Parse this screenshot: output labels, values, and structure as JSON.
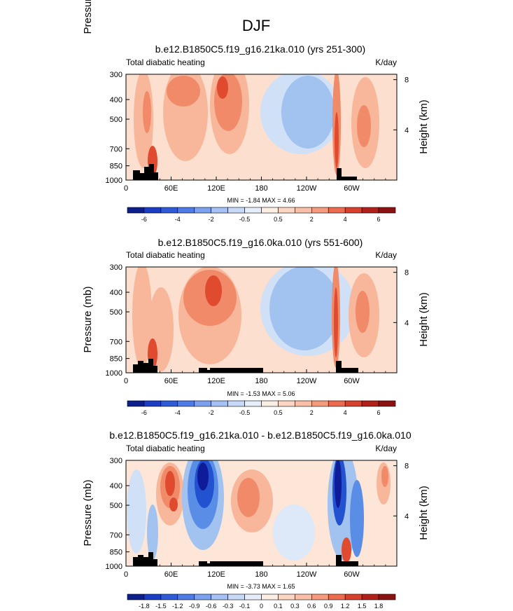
{
  "figure": {
    "title": "DJF"
  },
  "panels": [
    {
      "title": "b.e12.B1850C5.f19_g16.21ka.010 (yrs 251-300)",
      "left_label": "Total diabatic heating",
      "right_label": "K/day",
      "stats": "MIN = -1.84  MAX =  4.66",
      "colorbar_labels": [
        "-6",
        "-4",
        "-2",
        "-0.5",
        "0.5",
        "2",
        "4",
        "6"
      ]
    },
    {
      "title": "b.e12.B1850C5.f19_g16.0ka.010 (yrs 551-600)",
      "left_label": "Total diabatic heating",
      "right_label": "K/day",
      "stats": "MIN = -1.53  MAX =  5.06",
      "colorbar_labels": [
        "-6",
        "-4",
        "-2",
        "-0.5",
        "0.5",
        "2",
        "4",
        "6"
      ]
    },
    {
      "title": "b.e12.B1850C5.f19_g16.21ka.010 - b.e12.B1850C5.f19_g16.0ka.010",
      "left_label": "Total diabatic heating",
      "right_label": "K/day",
      "stats": "MIN = -3.73  MAX =  1.65",
      "colorbar_labels": [
        "-1.8",
        "-1.5",
        "-1.2",
        "-0.9",
        "-0.6",
        "-0.3",
        "-0.1",
        "0",
        "0.1",
        "0.3",
        "0.6",
        "0.9",
        "1.2",
        "1.5",
        "1.8"
      ]
    }
  ],
  "chart_data": [
    {
      "type": "heatmap",
      "title": "b.e12.B1850C5.f19_g16.21ka.010 (yrs 251-300)",
      "variable": "Total diabatic heating",
      "units": "K/day",
      "ylabel": "Pressure (mb)",
      "y2label": "Height (km)",
      "x_ticks": [
        "0",
        "60E",
        "120E",
        "180",
        "120W",
        "60W"
      ],
      "x_tick_values": [
        0,
        60,
        120,
        180,
        240,
        300
      ],
      "xlim": [
        0,
        360
      ],
      "y_ticks": [
        "300",
        "400",
        "500",
        "700",
        "850",
        "1000"
      ],
      "y_tick_values": [
        300,
        400,
        500,
        700,
        850,
        1000
      ],
      "ylim": [
        1000,
        300
      ],
      "y2_ticks": [
        "8",
        "4"
      ],
      "y2_tick_values": [
        8,
        4
      ],
      "min": -1.84,
      "max": 4.66,
      "colorbar_levels": [
        -6,
        -4,
        -2,
        -0.5,
        0.5,
        2,
        4,
        6
      ],
      "features": [
        {
          "lon_center": 15,
          "p_center": 500,
          "value": 1.5
        },
        {
          "lon_center": 30,
          "p_center": 870,
          "value": 4.0
        },
        {
          "lon_center": 80,
          "p_center": 500,
          "value": 1.8
        },
        {
          "lon_center": 135,
          "p_center": 480,
          "value": 2.5
        },
        {
          "lon_center": 200,
          "p_center": 700,
          "value": -0.8
        },
        {
          "lon_center": 240,
          "p_center": 550,
          "value": -1.2
        },
        {
          "lon_center": 282,
          "p_center": 600,
          "value": 3.0
        },
        {
          "lon_center": 325,
          "p_center": 650,
          "value": 1.6
        }
      ],
      "topography_shading": "black"
    },
    {
      "type": "heatmap",
      "title": "b.e12.B1850C5.f19_g16.0ka.010 (yrs 551-600)",
      "variable": "Total diabatic heating",
      "units": "K/day",
      "ylabel": "Pressure (mb)",
      "y2label": "Height (km)",
      "x_ticks": [
        "0",
        "60E",
        "120E",
        "180",
        "120W",
        "60W"
      ],
      "x_tick_values": [
        0,
        60,
        120,
        180,
        240,
        300
      ],
      "xlim": [
        0,
        360
      ],
      "y_ticks": [
        "300",
        "400",
        "500",
        "700",
        "850",
        "1000"
      ],
      "y_tick_values": [
        300,
        400,
        500,
        700,
        850,
        1000
      ],
      "ylim": [
        1000,
        300
      ],
      "y2_ticks": [
        "8",
        "4"
      ],
      "y2_tick_values": [
        8,
        4
      ],
      "min": -1.53,
      "max": 5.06,
      "colorbar_levels": [
        -6,
        -4,
        -2,
        -0.5,
        0.5,
        2,
        4,
        6
      ],
      "features": [
        {
          "lon_center": 15,
          "p_center": 500,
          "value": 1.5
        },
        {
          "lon_center": 30,
          "p_center": 870,
          "value": 4.0
        },
        {
          "lon_center": 115,
          "p_center": 450,
          "value": 2.5
        },
        {
          "lon_center": 80,
          "p_center": 650,
          "value": 1.2
        },
        {
          "lon_center": 215,
          "p_center": 560,
          "value": -1.3
        },
        {
          "lon_center": 200,
          "p_center": 850,
          "value": -0.6
        },
        {
          "lon_center": 282,
          "p_center": 600,
          "value": 3.2
        },
        {
          "lon_center": 320,
          "p_center": 650,
          "value": 1.6
        }
      ],
      "topography_shading": "black"
    },
    {
      "type": "heatmap",
      "title": "b.e12.B1850C5.f19_g16.21ka.010 - b.e12.B1850C5.f19_g16.0ka.010",
      "variable": "Total diabatic heating",
      "units": "K/day",
      "ylabel": "Pressure (mb)",
      "y2label": "Height (km)",
      "x_ticks": [
        "0",
        "60E",
        "120E",
        "180",
        "120W",
        "60W"
      ],
      "x_tick_values": [
        0,
        60,
        120,
        180,
        240,
        300
      ],
      "xlim": [
        0,
        360
      ],
      "y_ticks": [
        "300",
        "400",
        "500",
        "700",
        "850",
        "1000"
      ],
      "y_tick_values": [
        300,
        400,
        500,
        700,
        850,
        1000
      ],
      "ylim": [
        1000,
        300
      ],
      "y2_ticks": [
        "8",
        "4"
      ],
      "y2_tick_values": [
        8,
        4
      ],
      "min": -3.73,
      "max": 1.65,
      "colorbar_levels": [
        -1.8,
        -1.5,
        -1.2,
        -0.9,
        -0.6,
        -0.3,
        -0.1,
        0,
        0.1,
        0.3,
        0.6,
        0.9,
        1.2,
        1.5,
        1.8
      ],
      "features": [
        {
          "lon_center": 62,
          "p_center": 480,
          "value": 1.3
        },
        {
          "lon_center": 105,
          "p_center": 450,
          "value": -2.0
        },
        {
          "lon_center": 165,
          "p_center": 520,
          "value": 1.0
        },
        {
          "lon_center": 280,
          "p_center": 480,
          "value": -1.8
        },
        {
          "lon_center": 300,
          "p_center": 600,
          "value": -1.3
        },
        {
          "lon_center": 340,
          "p_center": 380,
          "value": 1.1
        },
        {
          "lon_center": 295,
          "p_center": 920,
          "value": 1.4
        }
      ],
      "topography_shading": "black"
    }
  ]
}
